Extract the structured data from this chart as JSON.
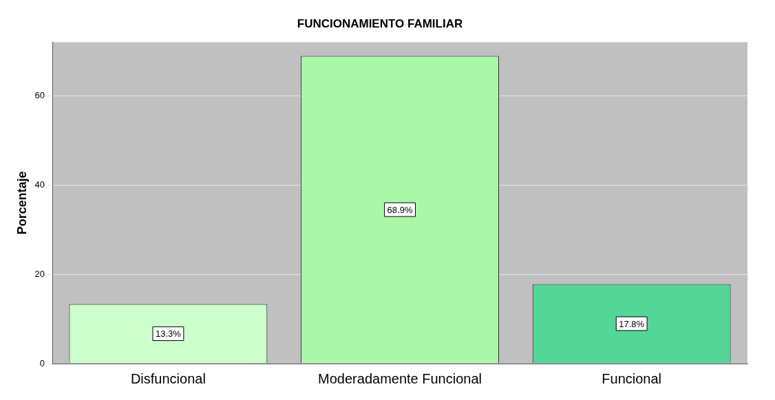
{
  "chart_data": {
    "type": "bar",
    "title": "FUNCIONAMIENTO FAMILIAR",
    "ylabel": "Porcentaje",
    "categories": [
      "Disfuncional",
      "Moderadamente Funcional",
      "Funcional"
    ],
    "values": [
      13.3,
      68.9,
      17.8
    ],
    "colors": [
      "#ccffcc",
      "#aaf7aa",
      "#55d699"
    ],
    "value_labels": [
      "13.3%",
      "68.9%",
      "17.8%"
    ],
    "ylim": [
      0,
      72
    ],
    "yticks": [
      0,
      20,
      40,
      60
    ],
    "grid": "y",
    "legend": false
  }
}
